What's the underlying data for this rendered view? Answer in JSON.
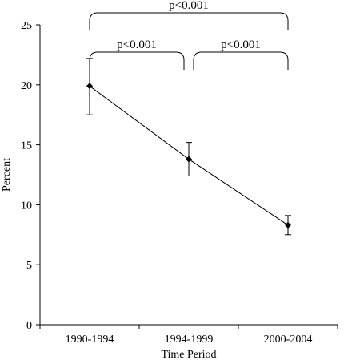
{
  "chart_data": {
    "type": "line",
    "title": "",
    "xlabel": "Time Period",
    "ylabel": "Percent",
    "categories": [
      "1990-1994",
      "1994-1999",
      "2000-2004"
    ],
    "series": [
      {
        "values": [
          19.9,
          13.8,
          8.3
        ],
        "error_upper": [
          22.2,
          15.2,
          9.1
        ],
        "error_lower": [
          17.5,
          12.4,
          7.5
        ],
        "marker": "diamond",
        "color": "#000000"
      }
    ],
    "ylim": [
      0,
      25
    ],
    "yticks": [
      0,
      5,
      10,
      15,
      20,
      25
    ],
    "grid": false,
    "legend": "none",
    "annotations": [
      {
        "label": "p<0.001",
        "from": "1990-1994",
        "to": "1994-1999",
        "tier": 1
      },
      {
        "label": "p<0.001",
        "from": "1994-1999",
        "to": "2000-2004",
        "tier": 1
      },
      {
        "label": "p<0.001",
        "from": "1990-1994",
        "to": "2000-2004",
        "tier": 2
      }
    ]
  }
}
